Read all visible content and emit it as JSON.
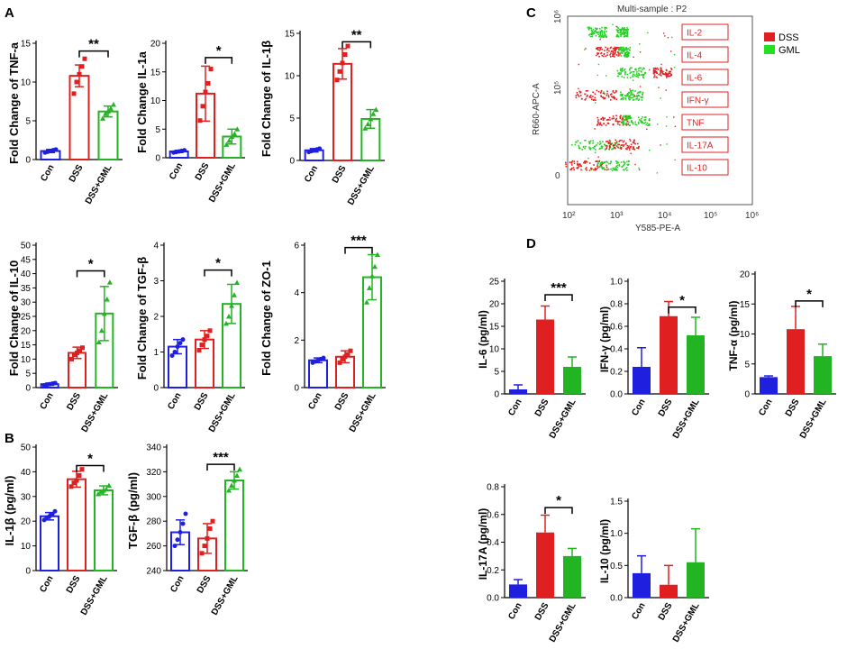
{
  "panel_letters": [
    "A",
    "B",
    "C",
    "D"
  ],
  "colors": {
    "con": "#1f1fe0",
    "dss": "#e02020",
    "gml": "#22b422"
  },
  "chart_data": [
    {
      "id": "a1",
      "type": "bar",
      "style": "hollow-dots",
      "categories": [
        "Con",
        "DSS",
        "DSS+GML"
      ],
      "values": [
        1.1,
        10.8,
        6.2
      ],
      "errors": [
        0.2,
        1.4,
        0.7
      ],
      "dots": [
        [
          0.9,
          1.0,
          1.1,
          1.2,
          1.3
        ],
        [
          8.5,
          10.0,
          11.0,
          12.0,
          13.0
        ],
        [
          5.3,
          5.9,
          6.2,
          6.6,
          7.1
        ]
      ],
      "ylabel": "Fold Change of TNF-a",
      "ylim": [
        0,
        15
      ],
      "yticks": [
        0,
        5,
        10,
        15
      ],
      "sig": {
        "label": "**",
        "from": 1,
        "to": 2,
        "y": 14.0
      }
    },
    {
      "id": "a2",
      "type": "bar",
      "style": "hollow-dots",
      "categories": [
        "Con",
        "DSS",
        "DSS+GML"
      ],
      "values": [
        1.1,
        11.2,
        3.7
      ],
      "errors": [
        0.2,
        4.8,
        1.3
      ],
      "dots": [
        [
          0.9,
          1.0,
          1.1,
          1.2,
          1.3
        ],
        [
          6.5,
          9.0,
          11.5,
          13.0,
          15.5
        ],
        [
          2.3,
          3.0,
          3.7,
          4.2,
          5.0
        ]
      ],
      "ylabel": "Fold Change IL-1a",
      "ylim": [
        0,
        20
      ],
      "yticks": [
        0,
        5,
        10,
        15,
        20
      ],
      "sig": {
        "label": "*",
        "from": 1,
        "to": 2,
        "y": 17.5
      }
    },
    {
      "id": "a3",
      "type": "bar",
      "style": "hollow-dots",
      "categories": [
        "Con",
        "DSS",
        "DSS+GML"
      ],
      "values": [
        1.2,
        11.4,
        4.9
      ],
      "errors": [
        0.2,
        1.8,
        1.1
      ],
      "dots": [
        [
          1.0,
          1.1,
          1.2,
          1.3,
          1.4
        ],
        [
          9.5,
          10.5,
          11.5,
          12.5,
          13.5
        ],
        [
          3.8,
          4.3,
          4.9,
          5.5,
          6.0
        ]
      ],
      "ylabel": "Fold Change of IL-1β",
      "ylim": [
        0,
        15
      ],
      "yticks": [
        0,
        5,
        10,
        15
      ],
      "sig": {
        "label": "**",
        "from": 1,
        "to": 2,
        "y": 14.0
      }
    },
    {
      "id": "a4",
      "type": "bar",
      "style": "hollow-dots",
      "categories": [
        "Con",
        "DSS",
        "DSS+GML"
      ],
      "values": [
        1.2,
        12.2,
        26.0
      ],
      "errors": [
        0.4,
        2.0,
        9.5
      ],
      "dots": [
        [
          0.8,
          1.0,
          1.2,
          1.4,
          1.6
        ],
        [
          10.0,
          11.5,
          12.2,
          13.0,
          14.0
        ],
        [
          16.0,
          20.0,
          26.0,
          31.0,
          37.0
        ]
      ],
      "ylabel": "Fold Change of IL-10",
      "ylim": [
        0,
        50
      ],
      "yticks": [
        0,
        5,
        10,
        15,
        20,
        25,
        30,
        35,
        40,
        45,
        50
      ],
      "sig": {
        "label": "*",
        "from": 1,
        "to": 2,
        "y": 41.0
      }
    },
    {
      "id": "a5",
      "type": "bar",
      "style": "hollow-dots",
      "categories": [
        "Con",
        "DSS",
        "DSS+GML"
      ],
      "values": [
        1.15,
        1.35,
        2.35
      ],
      "errors": [
        0.2,
        0.25,
        0.55
      ],
      "dots": [
        [
          0.9,
          1.0,
          1.15,
          1.25,
          1.35
        ],
        [
          1.05,
          1.2,
          1.35,
          1.45,
          1.6
        ],
        [
          1.8,
          2.0,
          2.3,
          2.6,
          2.95
        ]
      ],
      "ylabel": "Fold Change of TGF-β",
      "ylim": [
        0,
        4
      ],
      "yticks": [
        0,
        1,
        2,
        3,
        4
      ],
      "sig": {
        "label": "*",
        "from": 1,
        "to": 2,
        "y": 3.3
      }
    },
    {
      "id": "a6",
      "type": "bar",
      "style": "hollow-dots",
      "categories": [
        "Con",
        "DSS",
        "DSS+GML"
      ],
      "values": [
        1.15,
        1.3,
        4.65
      ],
      "errors": [
        0.1,
        0.25,
        0.95
      ],
      "dots": [
        [
          1.05,
          1.1,
          1.15,
          1.2,
          1.25
        ],
        [
          1.05,
          1.2,
          1.3,
          1.4,
          1.55
        ],
        [
          3.6,
          4.2,
          4.7,
          5.1,
          5.6
        ]
      ],
      "ylabel": "Fold Change of ZO-1",
      "ylim": [
        0,
        6
      ],
      "yticks": [
        0,
        2,
        4,
        6
      ],
      "sig": {
        "label": "***",
        "from": 1,
        "to": 2,
        "y": 5.9
      }
    },
    {
      "id": "b1",
      "type": "bar",
      "style": "hollow-dots",
      "categories": [
        "Con",
        "DSS",
        "DSS+GML"
      ],
      "values": [
        22.0,
        37.0,
        32.5
      ],
      "errors": [
        1.5,
        3.2,
        1.8
      ],
      "dots": [
        [
          20.5,
          21.5,
          22.0,
          22.8,
          24.0
        ],
        [
          34.0,
          35.5,
          36.5,
          38.5,
          41.0
        ],
        [
          31.0,
          32.0,
          32.5,
          33.0,
          34.5
        ]
      ],
      "ylabel": "IL-1β (pg/ml)",
      "ylim": [
        0,
        50
      ],
      "yticks": [
        0,
        10,
        20,
        30,
        40,
        50
      ],
      "sig": {
        "label": "*",
        "from": 1,
        "to": 2,
        "y": 42.5
      }
    },
    {
      "id": "b2",
      "type": "bar",
      "style": "hollow-dots",
      "categories": [
        "Con",
        "DSS",
        "DSS+GML"
      ],
      "values": [
        271.0,
        266.0,
        313.0
      ],
      "errors": [
        10.0,
        12.0,
        7.0
      ],
      "dots": [
        [
          260.0,
          265.0,
          271.0,
          278.0,
          286.0
        ],
        [
          254.0,
          260.0,
          266.0,
          274.0,
          280.0
        ],
        [
          305.0,
          309.0,
          313.0,
          317.0,
          322.0
        ]
      ],
      "ylabel": "TGF-β (pg/ml)",
      "ylim": [
        240,
        340
      ],
      "yticks": [
        240,
        260,
        280,
        300,
        320,
        340
      ],
      "sig": {
        "label": "***",
        "from": 1,
        "to": 2,
        "y": 326.0
      }
    },
    {
      "id": "d1",
      "type": "bar",
      "style": "solid",
      "categories": [
        "Con",
        "DSS",
        "DSS+GML"
      ],
      "values": [
        1.0,
        16.5,
        6.0
      ],
      "errors": [
        1.0,
        3.0,
        2.2
      ],
      "ylabel": "IL-6  (pg/ml)",
      "ylim": [
        0,
        25
      ],
      "yticks": [
        0,
        5,
        10,
        15,
        20,
        25
      ],
      "sig": {
        "label": "***",
        "from": 1,
        "to": 2,
        "y": 22.0
      }
    },
    {
      "id": "d2",
      "type": "bar",
      "style": "solid",
      "categories": [
        "Con",
        "DSS",
        "DSS+GML"
      ],
      "values": [
        0.24,
        0.69,
        0.52
      ],
      "errors": [
        0.17,
        0.13,
        0.16
      ],
      "ylabel": "IFN-γ  (pg/ml)",
      "ylim": [
        0,
        1.0
      ],
      "yticks": [
        0.0,
        0.2,
        0.4,
        0.6,
        0.8,
        1.0
      ],
      "sig": {
        "label": "*",
        "from": 1,
        "to": 2,
        "y": 0.77
      }
    },
    {
      "id": "d3",
      "type": "bar",
      "style": "solid",
      "categories": [
        "Con",
        "DSS",
        "DSS+GML"
      ],
      "values": [
        2.8,
        10.8,
        6.3
      ],
      "errors": [
        0.2,
        3.8,
        2.0
      ],
      "ylabel": "TNF-α  (pg/ml)",
      "ylim": [
        0,
        20
      ],
      "yticks": [
        0,
        5,
        10,
        15,
        20
      ],
      "sig": {
        "label": "*",
        "from": 1,
        "to": 2,
        "y": 15.5
      }
    },
    {
      "id": "d4",
      "type": "bar",
      "style": "solid",
      "categories": [
        "Con",
        "DSS",
        "DSS+GML"
      ],
      "values": [
        0.095,
        0.47,
        0.3
      ],
      "errors": [
        0.035,
        0.125,
        0.055
      ],
      "ylabel": "IL-17A (pg/ml)",
      "ylim": [
        0,
        0.8
      ],
      "yticks": [
        0.0,
        0.2,
        0.4,
        0.6,
        0.8
      ],
      "sig": {
        "label": "*",
        "from": 1,
        "to": 2,
        "y": 0.65
      }
    },
    {
      "id": "d5",
      "type": "bar",
      "style": "solid",
      "categories": [
        "Con",
        "DSS",
        "DSS+GML"
      ],
      "values": [
        0.38,
        0.2,
        0.55
      ],
      "errors": [
        0.27,
        0.3,
        0.52
      ],
      "ylabel": "IL-10 (pg/ml)",
      "ylim": [
        0,
        1.5
      ],
      "yticks": [
        0.0,
        0.5,
        1.0,
        1.5
      ],
      "sig": null
    }
  ],
  "flow": {
    "title": "Multi-sample : P2",
    "xlabel": "Y585-PE-A",
    "ylabel": "R660-APC-A",
    "xticks": [
      "10²",
      "10³",
      "10⁴",
      "10⁵",
      "10⁶"
    ],
    "yticks": [
      "0",
      "10⁵",
      "10⁶"
    ],
    "gates": [
      "IL-2",
      "IL-4",
      "IL-6",
      "IFN-γ",
      "TNF",
      "IL-17A",
      "IL-10"
    ],
    "legend": [
      "DSS",
      "GML"
    ]
  }
}
